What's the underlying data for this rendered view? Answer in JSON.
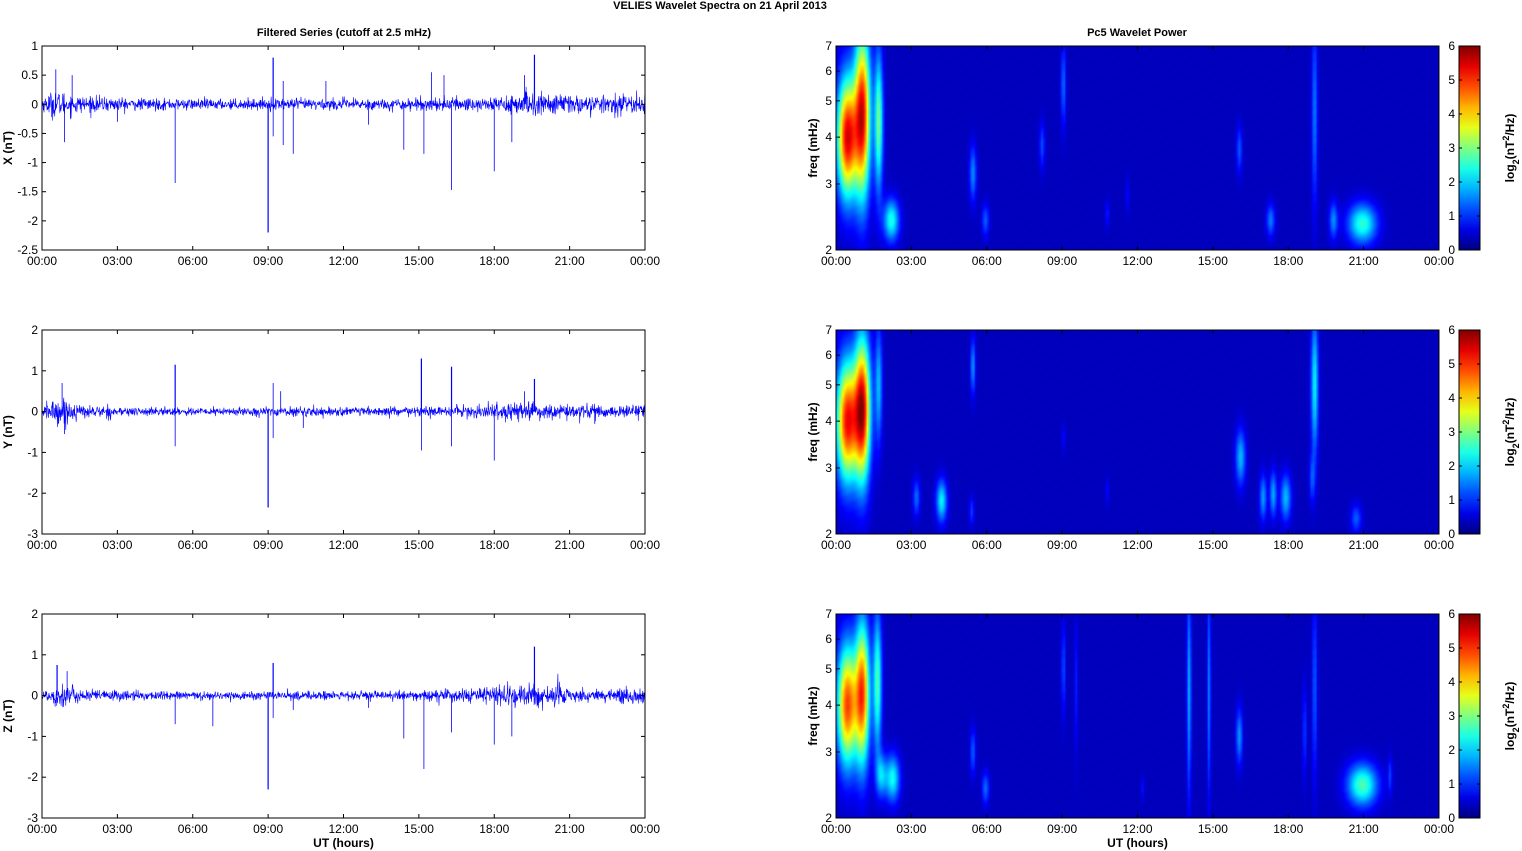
{
  "figure": {
    "suptitle": "VELIES Wavelet Spectra on 21 April     2013",
    "left_title": "Filtered Series (cutoff at 2.5 mHz)",
    "right_title": "Pc5 Wavelet Power",
    "xlabel": "UT (hours)"
  },
  "colors": {
    "series_line": "#0000ff",
    "axes": "#000000",
    "spectrogram_background": "#00008f",
    "colormap": "jet"
  },
  "chart_data": [
    {
      "type": "line",
      "panel": "time-series",
      "component": "X",
      "title": "Filtered Series (cutoff at 2.5 mHz)",
      "xlabel": "",
      "ylabel": "X (nT)",
      "xlim": [
        0,
        24
      ],
      "ylim": [
        -2.5,
        1
      ],
      "xticks": [
        "00:00",
        "03:00",
        "06:00",
        "09:00",
        "12:00",
        "15:00",
        "18:00",
        "21:00",
        "00:00"
      ],
      "yticks": [
        "-2.5",
        "-2",
        "-1.5",
        "-1",
        "-0.5",
        "0",
        "0.5",
        "1"
      ],
      "grid": false,
      "baseline_amplitude": [
        [
          0,
          0.1
        ],
        [
          0.5,
          0.22
        ],
        [
          1.5,
          0.13
        ],
        [
          4,
          0.09
        ],
        [
          8,
          0.08
        ],
        [
          10,
          0.09
        ],
        [
          14,
          0.09
        ],
        [
          17,
          0.11
        ],
        [
          19,
          0.16
        ],
        [
          20,
          0.2
        ],
        [
          21,
          0.15
        ],
        [
          22,
          0.13
        ],
        [
          24,
          0.15
        ]
      ],
      "spikes": [
        [
          0.55,
          0.6
        ],
        [
          0.9,
          -0.65
        ],
        [
          1.2,
          0.5
        ],
        [
          5.3,
          -1.35
        ],
        [
          9.0,
          -2.2
        ],
        [
          9.2,
          0.8
        ],
        [
          9.2,
          -0.55
        ],
        [
          9.6,
          -0.7
        ],
        [
          9.6,
          0.4
        ],
        [
          10.0,
          -0.85
        ],
        [
          11.3,
          0.4
        ],
        [
          14.4,
          -0.78
        ],
        [
          15.2,
          -0.85
        ],
        [
          15.5,
          0.55
        ],
        [
          16.0,
          0.5
        ],
        [
          16.3,
          -1.47
        ],
        [
          18.0,
          -1.15
        ],
        [
          18.7,
          -0.65
        ],
        [
          19.6,
          0.85
        ],
        [
          19.2,
          0.5
        ],
        [
          13.0,
          -0.35
        ],
        [
          3.0,
          -0.3
        ]
      ]
    },
    {
      "type": "line",
      "panel": "time-series",
      "component": "Y",
      "title": "",
      "xlabel": "",
      "ylabel": "Y (nT)",
      "xlim": [
        0,
        24
      ],
      "ylim": [
        -3,
        2
      ],
      "xticks": [
        "00:00",
        "03:00",
        "06:00",
        "09:00",
        "12:00",
        "15:00",
        "18:00",
        "21:00",
        "00:00"
      ],
      "yticks": [
        "-3",
        "-2",
        "-1",
        "0",
        "1",
        "2"
      ],
      "grid": false,
      "baseline_amplitude": [
        [
          0,
          0.12
        ],
        [
          0.6,
          0.35
        ],
        [
          1.5,
          0.15
        ],
        [
          4,
          0.09
        ],
        [
          8,
          0.09
        ],
        [
          10,
          0.1
        ],
        [
          14,
          0.1
        ],
        [
          17,
          0.13
        ],
        [
          19,
          0.22
        ],
        [
          20,
          0.18
        ],
        [
          22,
          0.13
        ],
        [
          24,
          0.18
        ]
      ],
      "spikes": [
        [
          0.8,
          0.7
        ],
        [
          0.9,
          -0.55
        ],
        [
          5.3,
          1.15
        ],
        [
          5.3,
          -0.85
        ],
        [
          9.0,
          -2.35
        ],
        [
          9.2,
          0.7
        ],
        [
          9.2,
          -0.65
        ],
        [
          9.5,
          0.5
        ],
        [
          10.4,
          -0.4
        ],
        [
          15.1,
          1.3
        ],
        [
          15.1,
          -0.95
        ],
        [
          16.3,
          1.1
        ],
        [
          16.3,
          -0.85
        ],
        [
          18.0,
          -1.2
        ],
        [
          19.6,
          0.8
        ],
        [
          19.2,
          0.5
        ],
        [
          22.0,
          -0.3
        ]
      ]
    },
    {
      "type": "line",
      "panel": "time-series",
      "component": "Z",
      "title": "",
      "xlabel": "UT (hours)",
      "ylabel": "Z (nT)",
      "xlim": [
        0,
        24
      ],
      "ylim": [
        -3,
        2
      ],
      "xticks": [
        "00:00",
        "03:00",
        "06:00",
        "09:00",
        "12:00",
        "15:00",
        "18:00",
        "21:00",
        "00:00"
      ],
      "yticks": [
        "-3",
        "-2",
        "-1",
        "0",
        "1",
        "2"
      ],
      "grid": false,
      "baseline_amplitude": [
        [
          0,
          0.1
        ],
        [
          0.6,
          0.3
        ],
        [
          1.5,
          0.15
        ],
        [
          4,
          0.1
        ],
        [
          8,
          0.09
        ],
        [
          10,
          0.1
        ],
        [
          14,
          0.1
        ],
        [
          17,
          0.15
        ],
        [
          19,
          0.25
        ],
        [
          20,
          0.28
        ],
        [
          21,
          0.2
        ],
        [
          22,
          0.15
        ],
        [
          24,
          0.2
        ]
      ],
      "spikes": [
        [
          0.6,
          0.75
        ],
        [
          1.0,
          0.6
        ],
        [
          5.3,
          -0.7
        ],
        [
          6.8,
          -0.75
        ],
        [
          9.0,
          -2.3
        ],
        [
          9.2,
          0.8
        ],
        [
          9.2,
          -0.55
        ],
        [
          10.0,
          -0.35
        ],
        [
          14.4,
          -1.05
        ],
        [
          15.2,
          -1.8
        ],
        [
          16.3,
          -0.9
        ],
        [
          18.0,
          -1.2
        ],
        [
          18.7,
          -1.0
        ],
        [
          19.6,
          1.2
        ],
        [
          13.0,
          -0.3
        ]
      ]
    },
    {
      "type": "heatmap",
      "panel": "wavelet",
      "component": "X",
      "title": "Pc5 Wavelet Power",
      "xlabel": "",
      "ylabel": "freq (mHz)",
      "xlim": [
        0,
        24
      ],
      "ylim": [
        2,
        7
      ],
      "yscale": "log",
      "xticks": [
        "00:00",
        "03:00",
        "06:00",
        "09:00",
        "12:00",
        "15:00",
        "18:00",
        "21:00",
        "00:00"
      ],
      "yticks": [
        "2",
        "3",
        "4",
        "5",
        "6",
        "7"
      ],
      "colorbar_label": "log2(nT2/Hz)",
      "colorbar_range": [
        0,
        6
      ],
      "colorbar_ticks": [
        "0",
        "1",
        "2",
        "3",
        "4",
        "5",
        "6"
      ],
      "blobs": [
        {
          "t": 0.45,
          "f": 4.0,
          "dt": 0.28,
          "ldf": 0.25,
          "v": 5.4
        },
        {
          "t": 1.05,
          "f": 4.6,
          "dt": 0.22,
          "ldf": 0.35,
          "v": 5.2
        },
        {
          "t": 1.7,
          "f": 4.4,
          "dt": 0.12,
          "ldf": 0.3,
          "v": 2.7
        },
        {
          "t": 2.2,
          "f": 2.4,
          "dt": 0.22,
          "ldf": 0.09,
          "v": 2.2
        },
        {
          "t": 5.45,
          "f": 3.2,
          "dt": 0.1,
          "ldf": 0.12,
          "v": 1.3
        },
        {
          "t": 5.95,
          "f": 2.4,
          "dt": 0.1,
          "ldf": 0.07,
          "v": 1.0
        },
        {
          "t": 8.2,
          "f": 3.8,
          "dt": 0.08,
          "ldf": 0.1,
          "v": 0.9
        },
        {
          "t": 9.05,
          "f": 5.5,
          "dt": 0.07,
          "ldf": 0.18,
          "v": 1.1
        },
        {
          "t": 10.8,
          "f": 2.5,
          "dt": 0.06,
          "ldf": 0.06,
          "v": 0.6
        },
        {
          "t": 11.6,
          "f": 2.8,
          "dt": 0.05,
          "ldf": 0.08,
          "v": 0.5
        },
        {
          "t": 16.05,
          "f": 3.7,
          "dt": 0.08,
          "ldf": 0.1,
          "v": 1.0
        },
        {
          "t": 17.3,
          "f": 2.4,
          "dt": 0.12,
          "ldf": 0.07,
          "v": 1.2
        },
        {
          "t": 19.05,
          "f": 4.6,
          "dt": 0.08,
          "ldf": 0.4,
          "v": 1.2
        },
        {
          "t": 19.8,
          "f": 2.4,
          "dt": 0.12,
          "ldf": 0.08,
          "v": 1.3
        },
        {
          "t": 20.95,
          "f": 2.35,
          "dt": 0.4,
          "ldf": 0.085,
          "v": 2.3
        }
      ]
    },
    {
      "type": "heatmap",
      "panel": "wavelet",
      "component": "Y",
      "title": "",
      "xlabel": "",
      "ylabel": "freq (mHz)",
      "xlim": [
        0,
        24
      ],
      "ylim": [
        2,
        7
      ],
      "yscale": "log",
      "xticks": [
        "00:00",
        "03:00",
        "06:00",
        "09:00",
        "12:00",
        "15:00",
        "18:00",
        "21:00",
        "00:00"
      ],
      "yticks": [
        "2",
        "3",
        "4",
        "5",
        "6",
        "7"
      ],
      "colorbar_label": "log2(nT2/Hz)",
      "colorbar_range": [
        0,
        6
      ],
      "colorbar_ticks": [
        "0",
        "1",
        "2",
        "3",
        "4",
        "5",
        "6"
      ],
      "blobs": [
        {
          "t": 0.45,
          "f": 4.0,
          "dt": 0.3,
          "ldf": 0.25,
          "v": 5.2
        },
        {
          "t": 1.05,
          "f": 4.3,
          "dt": 0.22,
          "ldf": 0.3,
          "v": 5.4
        },
        {
          "t": 1.7,
          "f": 5.0,
          "dt": 0.1,
          "ldf": 0.25,
          "v": 1.6
        },
        {
          "t": 3.2,
          "f": 2.5,
          "dt": 0.1,
          "ldf": 0.08,
          "v": 1.1
        },
        {
          "t": 4.2,
          "f": 2.45,
          "dt": 0.15,
          "ldf": 0.09,
          "v": 2.0
        },
        {
          "t": 5.45,
          "f": 5.6,
          "dt": 0.07,
          "ldf": 0.12,
          "v": 1.4
        },
        {
          "t": 5.4,
          "f": 2.3,
          "dt": 0.07,
          "ldf": 0.06,
          "v": 0.8
        },
        {
          "t": 9.05,
          "f": 3.6,
          "dt": 0.05,
          "ldf": 0.06,
          "v": 0.5
        },
        {
          "t": 10.8,
          "f": 2.6,
          "dt": 0.05,
          "ldf": 0.06,
          "v": 0.5
        },
        {
          "t": 16.1,
          "f": 3.2,
          "dt": 0.14,
          "ldf": 0.12,
          "v": 1.6
        },
        {
          "t": 17.0,
          "f": 2.5,
          "dt": 0.1,
          "ldf": 0.1,
          "v": 1.4
        },
        {
          "t": 17.4,
          "f": 2.55,
          "dt": 0.1,
          "ldf": 0.1,
          "v": 1.5
        },
        {
          "t": 17.9,
          "f": 2.5,
          "dt": 0.15,
          "ldf": 0.1,
          "v": 1.6
        },
        {
          "t": 19.05,
          "f": 5.0,
          "dt": 0.1,
          "ldf": 0.3,
          "v": 2.0
        },
        {
          "t": 18.95,
          "f": 2.8,
          "dt": 0.08,
          "ldf": 0.1,
          "v": 0.9
        },
        {
          "t": 20.7,
          "f": 2.2,
          "dt": 0.15,
          "ldf": 0.06,
          "v": 1.0
        }
      ]
    },
    {
      "type": "heatmap",
      "panel": "wavelet",
      "component": "Z",
      "title": "",
      "xlabel": "UT (hours)",
      "ylabel": "freq (mHz)",
      "xlim": [
        0,
        24
      ],
      "ylim": [
        2,
        7
      ],
      "yscale": "log",
      "xticks": [
        "00:00",
        "03:00",
        "06:00",
        "09:00",
        "12:00",
        "15:00",
        "18:00",
        "21:00",
        "00:00"
      ],
      "yticks": [
        "2",
        "3",
        "4",
        "5",
        "6",
        "7"
      ],
      "colorbar_label": "log2(nT2/Hz)",
      "colorbar_range": [
        0,
        6
      ],
      "colorbar_ticks": [
        "0",
        "1",
        "2",
        "3",
        "4",
        "5",
        "6"
      ],
      "blobs": [
        {
          "t": 0.45,
          "f": 4.0,
          "dt": 0.28,
          "ldf": 0.25,
          "v": 4.8
        },
        {
          "t": 1.05,
          "f": 4.3,
          "dt": 0.2,
          "ldf": 0.3,
          "v": 4.6
        },
        {
          "t": 1.65,
          "f": 4.6,
          "dt": 0.12,
          "ldf": 0.3,
          "v": 2.5
        },
        {
          "t": 1.8,
          "f": 2.6,
          "dt": 0.15,
          "ldf": 0.09,
          "v": 1.6
        },
        {
          "t": 2.25,
          "f": 2.55,
          "dt": 0.2,
          "ldf": 0.1,
          "v": 2.1
        },
        {
          "t": 5.45,
          "f": 3.0,
          "dt": 0.08,
          "ldf": 0.1,
          "v": 1.0
        },
        {
          "t": 5.95,
          "f": 2.4,
          "dt": 0.1,
          "ldf": 0.07,
          "v": 1.1
        },
        {
          "t": 9.05,
          "f": 5.0,
          "dt": 0.06,
          "ldf": 0.2,
          "v": 0.9
        },
        {
          "t": 9.55,
          "f": 4.5,
          "dt": 0.05,
          "ldf": 0.3,
          "v": 0.6
        },
        {
          "t": 14.05,
          "f": 4.4,
          "dt": 0.06,
          "ldf": 0.45,
          "v": 1.6
        },
        {
          "t": 14.85,
          "f": 4.4,
          "dt": 0.05,
          "ldf": 0.45,
          "v": 1.3
        },
        {
          "t": 16.05,
          "f": 3.3,
          "dt": 0.09,
          "ldf": 0.12,
          "v": 1.4
        },
        {
          "t": 18.65,
          "f": 3.4,
          "dt": 0.06,
          "ldf": 0.2,
          "v": 0.8
        },
        {
          "t": 19.05,
          "f": 4.4,
          "dt": 0.07,
          "ldf": 0.4,
          "v": 1.0
        },
        {
          "t": 20.95,
          "f": 2.45,
          "dt": 0.42,
          "ldf": 0.09,
          "v": 2.5
        },
        {
          "t": 22.05,
          "f": 2.6,
          "dt": 0.06,
          "ldf": 0.08,
          "v": 0.8
        },
        {
          "t": 12.2,
          "f": 2.4,
          "dt": 0.05,
          "ldf": 0.05,
          "v": 0.5
        }
      ]
    }
  ]
}
